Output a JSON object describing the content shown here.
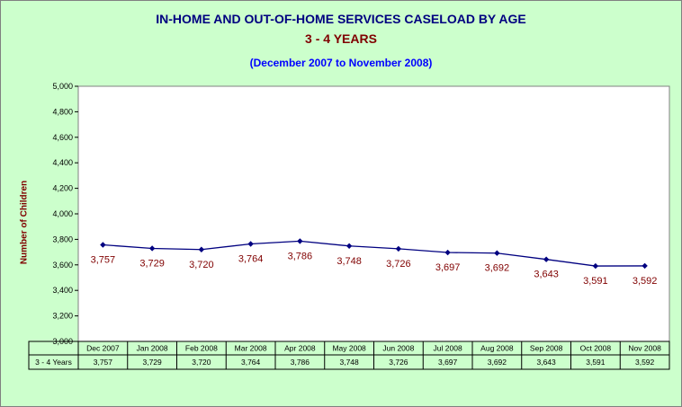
{
  "chart_data": {
    "type": "line",
    "title": "IN-HOME AND OUT-OF-HOME SERVICES CASELOAD BY AGE",
    "subtitle": "3 - 4 YEARS",
    "date_range": "(December 2007 to November 2008)",
    "ylabel": "Number of Children",
    "xlabel": "",
    "ylim": [
      3000,
      5000
    ],
    "yticks": [
      "3,000",
      "3,200",
      "3,400",
      "3,600",
      "3,800",
      "4,000",
      "4,200",
      "4,400",
      "4,600",
      "4,800",
      "5,000"
    ],
    "grid": false,
    "categories": [
      "Dec 2007",
      "Jan 2008",
      "Feb 2008",
      "Mar 2008",
      "Apr 2008",
      "May 2008",
      "Jun 2008",
      "Jul 2008",
      "Aug 2008",
      "Sep 2008",
      "Oct 2008",
      "Nov 2008"
    ],
    "series": [
      {
        "name": "3 - 4 Years",
        "values": [
          3757,
          3729,
          3720,
          3764,
          3786,
          3748,
          3726,
          3697,
          3692,
          3643,
          3591,
          3592
        ],
        "labels": [
          "3,757",
          "3,729",
          "3,720",
          "3,764",
          "3,786",
          "3,748",
          "3,726",
          "3,697",
          "3,692",
          "3,643",
          "3,591",
          "3,592"
        ],
        "color": "#000080"
      }
    ],
    "data_table": true,
    "colors": {
      "background": "#ccffcc",
      "plot_area": "#ffffff",
      "line": "#000080",
      "data_label": "#800000"
    }
  }
}
